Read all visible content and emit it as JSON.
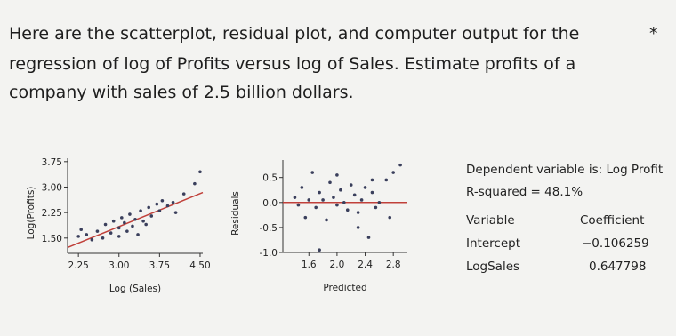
{
  "question": {
    "lines": [
      "Here are the scatterplot, residual plot, and computer output for the",
      "regression of log of Profits versus log of Sales.  Estimate profits of a",
      "company with sales of 2.5 billion dollars."
    ],
    "marker": "*"
  },
  "chart_data": [
    {
      "type": "scatter",
      "x_label": "Log (Sales)",
      "y_label": "Log(Profits)",
      "color": "#3a3f5c",
      "line_color": "#c0403a",
      "fit_line": true,
      "x": [
        2.25,
        2.3,
        2.4,
        2.5,
        2.6,
        2.7,
        2.75,
        2.85,
        2.9,
        3.0,
        3.0,
        3.05,
        3.1,
        3.15,
        3.2,
        3.25,
        3.3,
        3.35,
        3.4,
        3.45,
        3.5,
        3.55,
        3.6,
        3.7,
        3.75,
        3.8,
        3.9,
        4.0,
        4.05,
        4.2,
        4.4,
        4.5
      ],
      "values": [
        1.55,
        1.75,
        1.6,
        1.45,
        1.7,
        1.5,
        1.9,
        1.65,
        2.0,
        1.55,
        1.8,
        2.1,
        1.95,
        1.7,
        2.2,
        1.85,
        2.05,
        1.6,
        2.3,
        2.0,
        1.9,
        2.4,
        2.15,
        2.5,
        2.3,
        2.6,
        2.45,
        2.55,
        2.25,
        2.8,
        3.1,
        3.45
      ],
      "xlim": [
        2.05,
        4.55
      ],
      "ylim": [
        1.05,
        3.85
      ],
      "xticks": [
        {
          "value": 2.25,
          "label": "2.25"
        },
        {
          "value": 3,
          "label": "3.00"
        },
        {
          "value": 3.75,
          "label": "3.75"
        },
        {
          "value": 4.5,
          "label": "4.50"
        }
      ],
      "yticks": [
        {
          "value": 1.5,
          "label": "1.50"
        },
        {
          "value": 2.25,
          "label": "2.25"
        },
        {
          "value": 3,
          "label": "3.00"
        },
        {
          "value": 3.75,
          "label": "3.75"
        }
      ]
    },
    {
      "type": "scatter",
      "x_label": "Predicted",
      "y_label": "Residuals",
      "color": "#3a3f5c",
      "line_color": "#c0403a",
      "zero_line": true,
      "x": [
        1.4,
        1.45,
        1.5,
        1.55,
        1.6,
        1.65,
        1.7,
        1.75,
        1.8,
        1.85,
        1.9,
        1.95,
        2.0,
        2.05,
        2.1,
        2.15,
        2.2,
        2.25,
        2.3,
        2.35,
        2.4,
        2.45,
        2.5,
        2.55,
        2.6,
        2.7,
        2.75,
        2.8,
        1.75,
        2.0,
        2.3,
        2.9,
        2.5
      ],
      "values": [
        0.1,
        -0.05,
        0.3,
        -0.3,
        0.05,
        0.6,
        -0.1,
        0.2,
        0.05,
        -0.35,
        0.4,
        0.1,
        -0.05,
        0.25,
        0.0,
        -0.15,
        0.35,
        0.15,
        -0.5,
        0.05,
        0.3,
        -0.7,
        0.2,
        -0.1,
        0.0,
        0.45,
        -0.3,
        0.6,
        -0.95,
        0.55,
        -0.2,
        0.75,
        0.45
      ],
      "xlim": [
        1.23,
        3.0
      ],
      "ylim": [
        -1.0,
        0.85
      ],
      "xticks": [
        1.6,
        {
          "value": 2,
          "label": "2.0"
        },
        2.4,
        2.8
      ],
      "yticks": [
        {
          "value": -1,
          "label": "-1.0"
        },
        -0.5,
        {
          "value": 0,
          "label": "0.0"
        },
        0.5
      ]
    }
  ],
  "output": {
    "dependent": "Dependent variable is: Log Profit",
    "r_squared": "R-squared = 48.1%",
    "header": [
      "Variable",
      "Coefficient"
    ],
    "rows": [
      {
        "name": "Intercept",
        "coefficient": -0.106259,
        "label": "−0.106259"
      },
      {
        "name": "LogSales",
        "coefficient": 0.647798,
        "label": "0.647798"
      }
    ]
  }
}
